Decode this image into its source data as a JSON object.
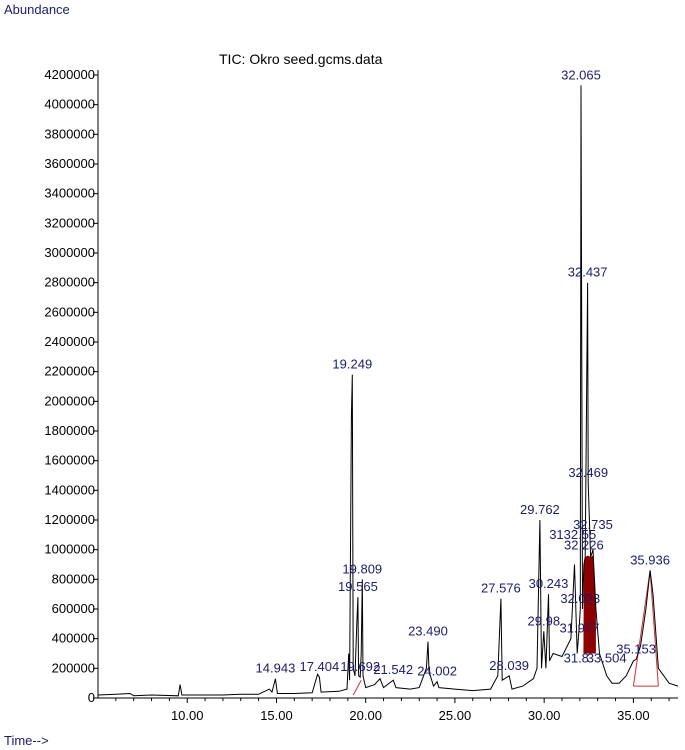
{
  "chart_data": {
    "type": "line",
    "title": "TIC: Okro seed.gcms.data",
    "ylabel": "Abundance",
    "xlabel": "Time-->",
    "xlim": [
      5.0,
      37.5
    ],
    "ylim": [
      0,
      4200000
    ],
    "x_ticks": [
      10,
      15,
      20,
      25,
      30,
      35
    ],
    "x_tick_labels": [
      "10.00",
      "15.00",
      "20.00",
      "25.00",
      "30.00",
      "35.00"
    ],
    "y_ticks": [
      0,
      200000,
      400000,
      600000,
      800000,
      1000000,
      1200000,
      1400000,
      1600000,
      1800000,
      2000000,
      2200000,
      2400000,
      2600000,
      2800000,
      3000000,
      3200000,
      3400000,
      3600000,
      3800000,
      4000000,
      4200000
    ],
    "y_tick_labels": [
      "0",
      "200000",
      "400000",
      "600000",
      "800000",
      "1000000",
      "1200000",
      "1400000",
      "1600000",
      "1800000",
      "2000000",
      "2200000",
      "2400000",
      "2600000",
      "2800000",
      "3000000",
      "3200000",
      "3400000",
      "3600000",
      "3800000",
      "4000000",
      "4200000"
    ],
    "grid": false,
    "series": [
      {
        "points": [
          [
            5.0,
            20000
          ],
          [
            6.0,
            25000
          ],
          [
            6.8,
            30000
          ],
          [
            7.0,
            15000
          ],
          [
            8.0,
            20000
          ],
          [
            9.5,
            15000
          ],
          [
            9.6,
            90000
          ],
          [
            9.7,
            20000
          ],
          [
            11.0,
            20000
          ],
          [
            12.0,
            20000
          ],
          [
            13.0,
            25000
          ],
          [
            14.0,
            25000
          ],
          [
            14.6,
            60000
          ],
          [
            14.75,
            40000
          ],
          [
            14.943,
            130000
          ],
          [
            15.05,
            30000
          ],
          [
            16.0,
            30000
          ],
          [
            17.0,
            35000
          ],
          [
            17.3,
            160000
          ],
          [
            17.404,
            140000
          ],
          [
            17.5,
            40000
          ],
          [
            18.5,
            45000
          ],
          [
            18.95,
            60000
          ],
          [
            19.05,
            300000
          ],
          [
            19.1,
            120000
          ],
          [
            19.2,
            1900000
          ],
          [
            19.249,
            2180000
          ],
          [
            19.3,
            200000
          ],
          [
            19.4,
            150000
          ],
          [
            19.5,
            500000
          ],
          [
            19.565,
            680000
          ],
          [
            19.6,
            150000
          ],
          [
            19.692,
            140000
          ],
          [
            19.75,
            300000
          ],
          [
            19.809,
            800000
          ],
          [
            19.85,
            150000
          ],
          [
            20.0,
            70000
          ],
          [
            20.5,
            90000
          ],
          [
            20.8,
            130000
          ],
          [
            21.0,
            70000
          ],
          [
            21.542,
            120000
          ],
          [
            21.7,
            70000
          ],
          [
            22.5,
            60000
          ],
          [
            23.0,
            70000
          ],
          [
            23.4,
            200000
          ],
          [
            23.49,
            380000
          ],
          [
            23.55,
            180000
          ],
          [
            23.8,
            80000
          ],
          [
            24.002,
            110000
          ],
          [
            24.1,
            70000
          ],
          [
            25.0,
            60000
          ],
          [
            26.0,
            50000
          ],
          [
            27.0,
            60000
          ],
          [
            27.4,
            150000
          ],
          [
            27.576,
            670000
          ],
          [
            27.65,
            120000
          ],
          [
            28.039,
            150000
          ],
          [
            28.2,
            60000
          ],
          [
            28.8,
            80000
          ],
          [
            29.4,
            130000
          ],
          [
            29.6,
            200000
          ],
          [
            29.762,
            1200000
          ],
          [
            29.85,
            200000
          ],
          [
            29.98,
            450000
          ],
          [
            30.1,
            200000
          ],
          [
            30.243,
            700000
          ],
          [
            30.3,
            250000
          ],
          [
            30.5,
            300000
          ],
          [
            31.0,
            280000
          ],
          [
            31.5,
            400000
          ],
          [
            31.7,
            900000
          ],
          [
            31.85,
            300000
          ],
          [
            31.977,
            500000
          ],
          [
            32.023,
            600000
          ],
          [
            32.065,
            4130000
          ],
          [
            32.15,
            600000
          ],
          [
            32.226,
            900000
          ],
          [
            32.3,
            950000
          ],
          [
            32.437,
            2800000
          ],
          [
            32.469,
            1450000
          ],
          [
            32.6,
            950000
          ],
          [
            32.735,
            1000000
          ],
          [
            32.9,
            600000
          ],
          [
            33.1,
            300000
          ],
          [
            33.504,
            150000
          ],
          [
            33.8,
            100000
          ],
          [
            34.2,
            100000
          ],
          [
            34.6,
            150000
          ],
          [
            35.0,
            250000
          ],
          [
            35.153,
            260000
          ],
          [
            35.4,
            350000
          ],
          [
            35.7,
            600000
          ],
          [
            35.936,
            860000
          ],
          [
            36.1,
            700000
          ],
          [
            36.4,
            200000
          ],
          [
            37.0,
            100000
          ],
          [
            37.5,
            80000
          ]
        ]
      }
    ],
    "peak_labels": [
      {
        "text": "32.065",
        "x": 32.065,
        "y": 4130000
      },
      {
        "text": "32.437",
        "x": 32.437,
        "y": 2800000
      },
      {
        "text": "19.249",
        "x": 19.249,
        "y": 2180000
      },
      {
        "text": "32.469",
        "x": 32.469,
        "y": 1450000
      },
      {
        "text": "29.762",
        "x": 29.762,
        "y": 1200000
      },
      {
        "text": "32.735",
        "x": 32.735,
        "y": 1100000
      },
      {
        "text": "3132.55",
        "x": 31.6,
        "y": 1030000
      },
      {
        "text": "32.226",
        "x": 32.226,
        "y": 960000
      },
      {
        "text": "19.809",
        "x": 19.809,
        "y": 800000
      },
      {
        "text": "35.936",
        "x": 35.936,
        "y": 860000
      },
      {
        "text": "27.576",
        "x": 27.576,
        "y": 670000
      },
      {
        "text": "30.243",
        "x": 30.243,
        "y": 700000
      },
      {
        "text": "19.565",
        "x": 19.565,
        "y": 680000
      },
      {
        "text": "32.023",
        "x": 32.023,
        "y": 600000
      },
      {
        "text": "29.98",
        "x": 29.98,
        "y": 450000
      },
      {
        "text": "31.977",
        "x": 31.977,
        "y": 400000
      },
      {
        "text": "23.490",
        "x": 23.49,
        "y": 380000
      },
      {
        "text": "31.8",
        "x": 31.8,
        "y": 200000
      },
      {
        "text": "33.504",
        "x": 33.504,
        "y": 200000
      },
      {
        "text": "35.153",
        "x": 35.153,
        "y": 260000
      },
      {
        "text": "14.943",
        "x": 14.943,
        "y": 130000
      },
      {
        "text": "17.404",
        "x": 17.404,
        "y": 140000
      },
      {
        "text": "19.692",
        "x": 19.692,
        "y": 140000
      },
      {
        "text": "21.542",
        "x": 21.542,
        "y": 120000
      },
      {
        "text": "24.002",
        "x": 24.002,
        "y": 110000
      },
      {
        "text": "28.039",
        "x": 28.039,
        "y": 150000
      }
    ],
    "colors": {
      "trace": "#000000",
      "label": "#1c1c6e",
      "fill": "#8b0000",
      "baseline": "#cc3333"
    }
  }
}
